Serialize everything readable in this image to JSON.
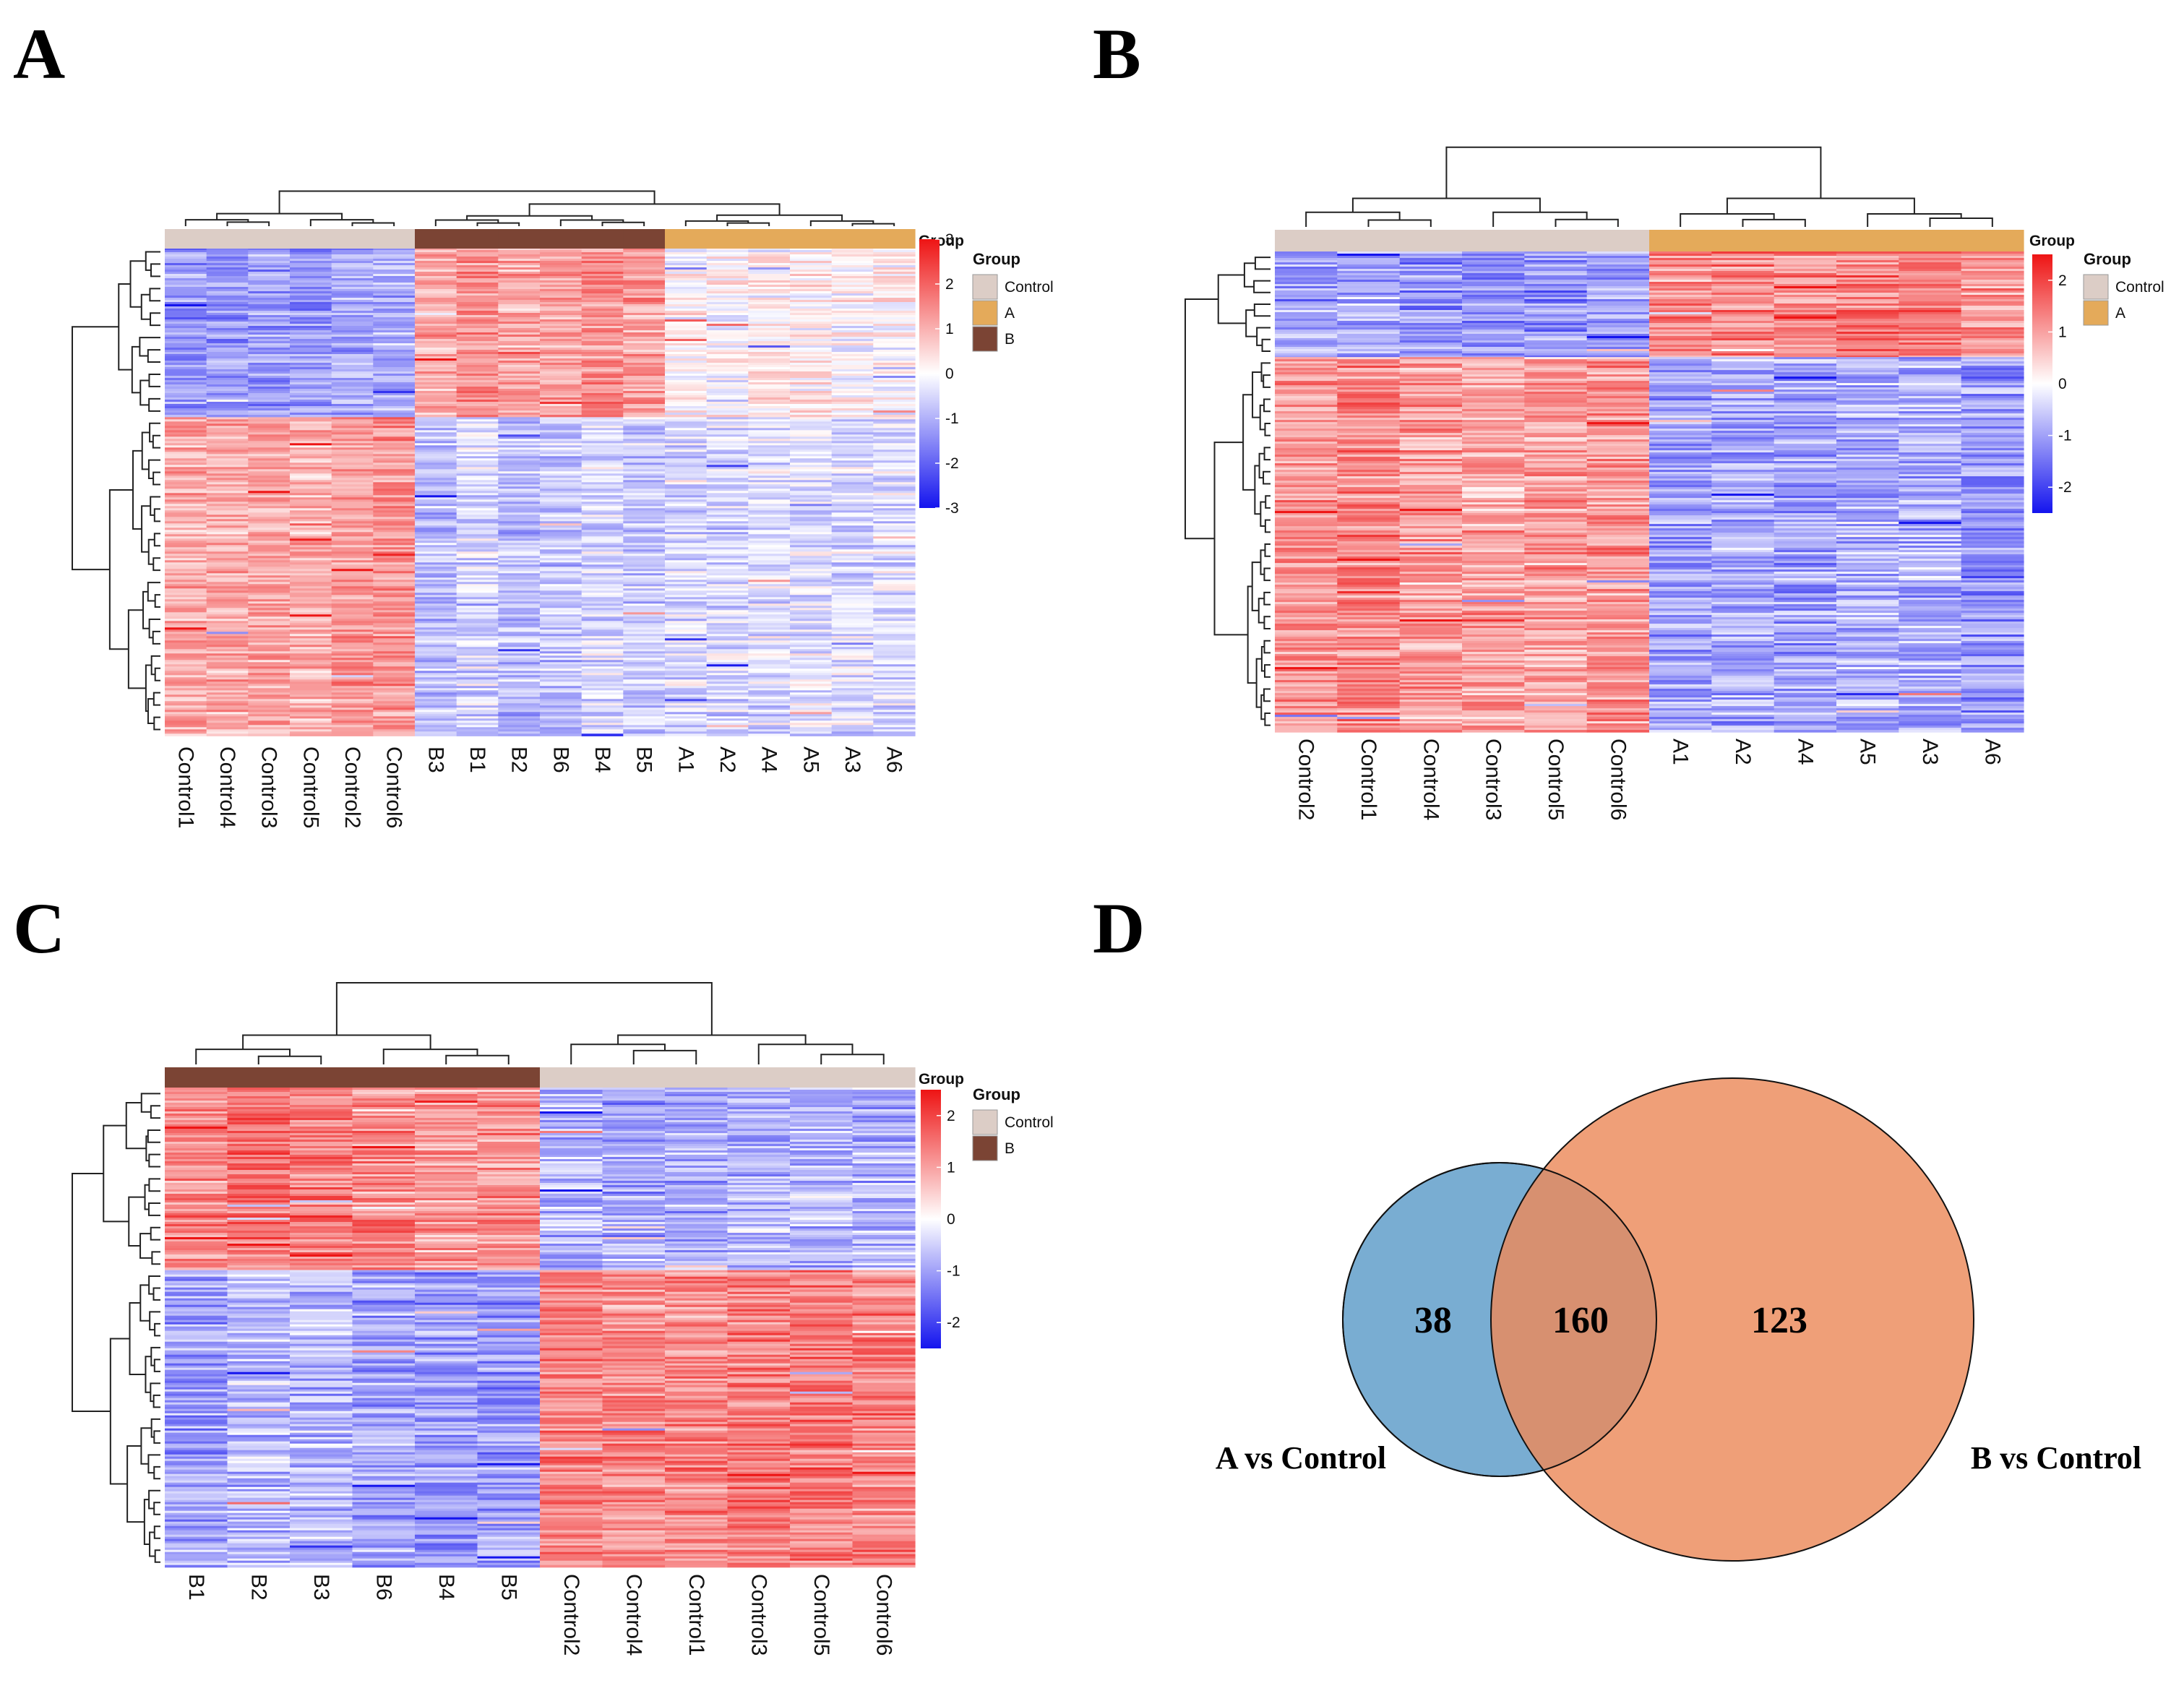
{
  "panels": {
    "A": {
      "letter": "A"
    },
    "B": {
      "letter": "B"
    },
    "C": {
      "letter": "C"
    },
    "D": {
      "letter": "D"
    }
  },
  "group_colors": {
    "Control": "#dccdc6",
    "A": "#e4aa5a",
    "B": "#7b4434"
  },
  "heat_colors": {
    "low": "#1414ee",
    "mid": "#ffffff",
    "high": "#ee1414"
  },
  "chart_data": [
    {
      "type": "heatmap",
      "panel": "A",
      "columns": [
        "Control1",
        "Control4",
        "Control3",
        "Control5",
        "Control2",
        "Control6",
        "B3",
        "B1",
        "B2",
        "B6",
        "B4",
        "B5",
        "A1",
        "A2",
        "A4",
        "A5",
        "A3",
        "A6"
      ],
      "column_groups": [
        "Control",
        "Control",
        "Control",
        "Control",
        "Control",
        "Control",
        "B",
        "B",
        "B",
        "B",
        "B",
        "B",
        "A",
        "A",
        "A",
        "A",
        "A",
        "A"
      ],
      "row_blocks": [
        {
          "fraction": 0.35,
          "Control": -1.2,
          "B": 1.3,
          "A": 0.1
        },
        {
          "fraction": 0.65,
          "Control": 1.2,
          "B": -0.6,
          "A": -0.4
        }
      ],
      "color_scale": {
        "ticks": [
          3,
          2,
          1,
          0,
          -1,
          -2,
          -3
        ],
        "range": [
          -3,
          3
        ]
      },
      "annotation_title": "Group",
      "legend_title": "Group",
      "legend_entries": [
        "Control",
        "A",
        "B"
      ]
    },
    {
      "type": "heatmap",
      "panel": "B",
      "columns": [
        "Control2",
        "Control1",
        "Control4",
        "Control3",
        "Control5",
        "Control6",
        "A1",
        "A2",
        "A4",
        "A5",
        "A3",
        "A6"
      ],
      "column_groups": [
        "Control",
        "Control",
        "Control",
        "Control",
        "Control",
        "Control",
        "A",
        "A",
        "A",
        "A",
        "A",
        "A"
      ],
      "row_blocks": [
        {
          "fraction": 0.22,
          "Control": -0.9,
          "A": 1.3
        },
        {
          "fraction": 0.78,
          "Control": 1.2,
          "A": -0.9
        }
      ],
      "color_scale": {
        "ticks": [
          2,
          1,
          0,
          -1,
          -2
        ],
        "range": [
          -2.5,
          2.5
        ]
      },
      "annotation_title": "Group",
      "legend_title": "Group",
      "legend_entries": [
        "Control",
        "A"
      ]
    },
    {
      "type": "heatmap",
      "panel": "C",
      "columns": [
        "B1",
        "B2",
        "B3",
        "B6",
        "B4",
        "B5",
        "Control2",
        "Control4",
        "Control1",
        "Control3",
        "Control5",
        "Control6"
      ],
      "column_groups": [
        "B",
        "B",
        "B",
        "B",
        "B",
        "B",
        "Control",
        "Control",
        "Control",
        "Control",
        "Control",
        "Control"
      ],
      "row_blocks": [
        {
          "fraction": 0.38,
          "B": 1.3,
          "Control": -0.9
        },
        {
          "fraction": 0.62,
          "B": -0.9,
          "Control": 1.2
        }
      ],
      "color_scale": {
        "ticks": [
          2,
          1,
          0,
          -1,
          -2
        ],
        "range": [
          -2.5,
          2.5
        ]
      },
      "annotation_title": "Group",
      "legend_title": "Group",
      "legend_entries": [
        "Control",
        "B"
      ]
    },
    {
      "type": "venn",
      "panel": "D",
      "sets": [
        {
          "name": "A vs Control",
          "color": "#5b9bc8"
        },
        {
          "name": "B vs Control",
          "color": "#eb8a5a"
        }
      ],
      "counts": {
        "A_only": 38,
        "both": 160,
        "B_only": 123
      },
      "count_labels": {
        "A_only": "38",
        "both": "160",
        "B_only": "123"
      }
    }
  ]
}
